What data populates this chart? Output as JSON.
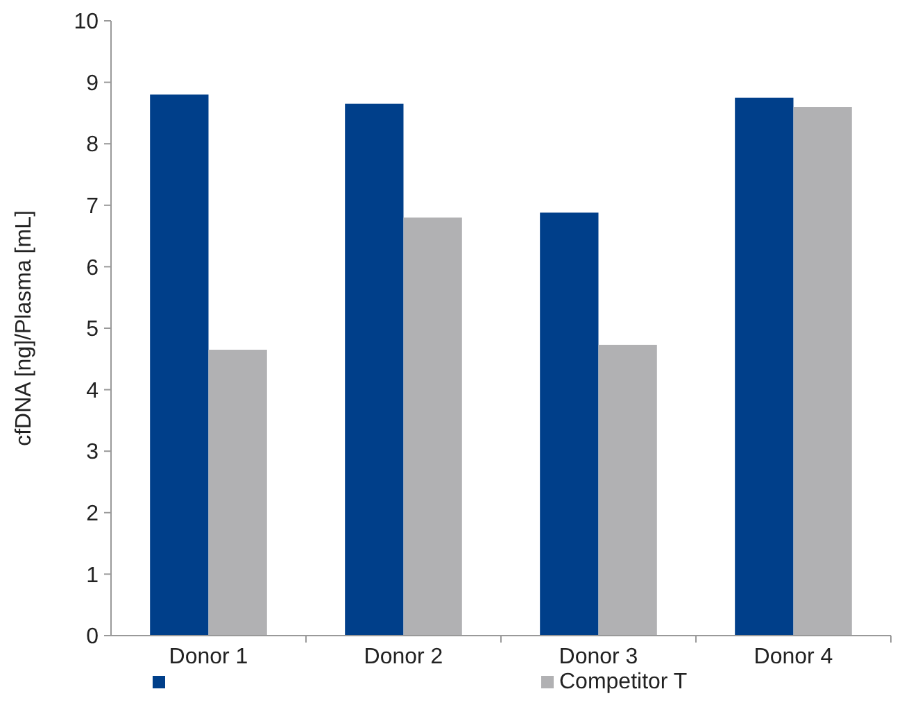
{
  "chart_data": {
    "type": "bar",
    "ylabel": "cfDNA [ng]/Plasma [mL]",
    "categories": [
      "Donor 1",
      "Donor 2",
      "Donor 3",
      "Donor 4"
    ],
    "series": [
      {
        "color": "#003f8a",
        "values": [
          8.8,
          8.65,
          6.88,
          8.75
        ]
      },
      {
        "name": "Competitor T",
        "color": "#b1b1b3",
        "values": [
          4.65,
          6.8,
          4.73,
          8.6
        ]
      }
    ],
    "ylim": [
      0,
      10
    ],
    "yticks": [
      0,
      1,
      2,
      3,
      4,
      5,
      6,
      7,
      8,
      9,
      10
    ],
    "grid": false,
    "legend": "bottom"
  }
}
